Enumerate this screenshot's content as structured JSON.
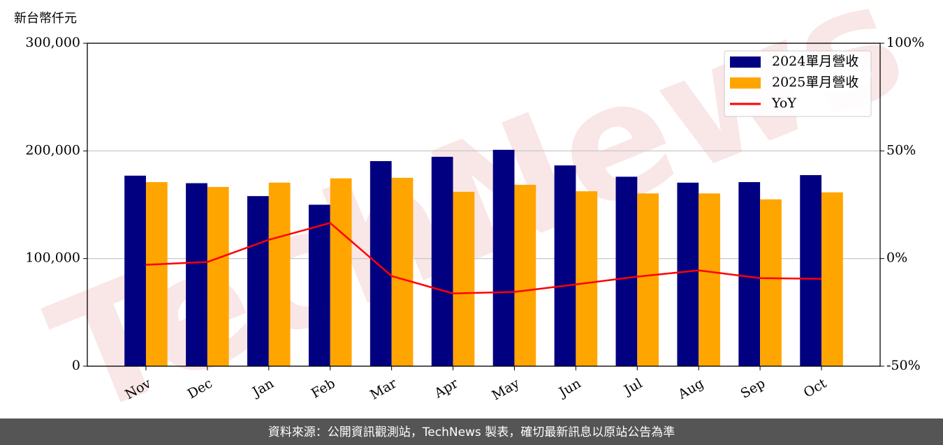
{
  "chart_data": {
    "type": "bar",
    "y_axis_label": "新台幣仟元",
    "watermark": "TechNews",
    "footer": "資料來源：公開資訊觀測站，TechNews 製表，確切最新訊息以原站公告為準",
    "categories": [
      "Nov",
      "Dec",
      "Jan",
      "Feb",
      "Mar",
      "Apr",
      "May",
      "Jun",
      "Jul",
      "Aug",
      "Sep",
      "Oct"
    ],
    "series": [
      {
        "name": "2024單月營收",
        "color": "#000080",
        "values": [
          177000,
          170000,
          158000,
          150000,
          190500,
          194500,
          201000,
          186500,
          176000,
          170500,
          171000,
          177500
        ]
      },
      {
        "name": "2025單月營收",
        "color": "#ffa500",
        "values": [
          171000,
          166500,
          170500,
          174500,
          175000,
          162000,
          168500,
          162500,
          160500,
          160500,
          155000,
          161500
        ]
      },
      {
        "name": "YoY",
        "color": "#ff0000",
        "type": "line",
        "axis": "y2",
        "values": [
          -2.9,
          -1.6,
          8.7,
          16.5,
          -8.1,
          -16.2,
          -15.5,
          -12.0,
          -8.4,
          -5.5,
          -9.1,
          -9.4
        ]
      }
    ],
    "ylim": [
      0,
      300000
    ],
    "yticks": [
      0,
      {
        "value": 100000,
        "label": "100,000"
      },
      {
        "value": 200000,
        "label": "200,000"
      },
      {
        "value": 300000,
        "label": "300,000"
      }
    ],
    "y2lim": [
      -50,
      100
    ],
    "y2ticks": [
      {
        "value": -50,
        "label": "-50%"
      },
      {
        "value": 0,
        "label": "0%"
      },
      {
        "value": 50,
        "label": "50%"
      },
      {
        "value": 100,
        "label": "100%"
      }
    ],
    "grid": true,
    "legend": "upper right"
  }
}
